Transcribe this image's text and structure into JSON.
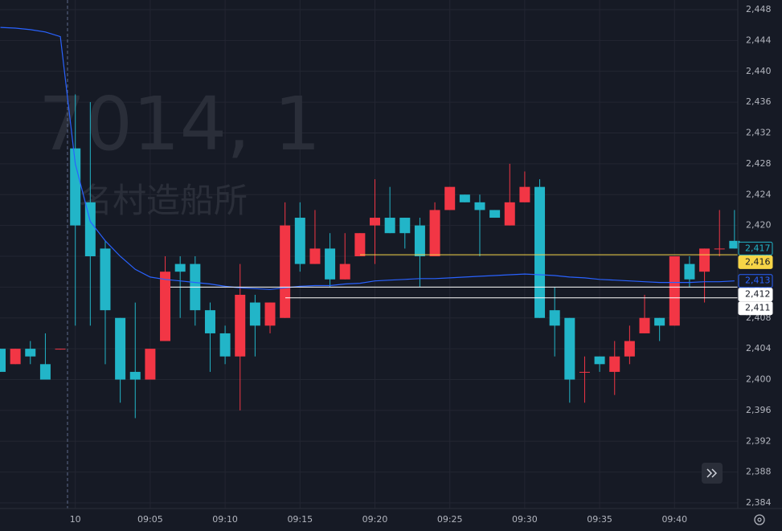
{
  "chart_data": {
    "type": "candlestick",
    "watermark": [
      "7014, 1",
      "名村造船所"
    ],
    "categories": [
      null,
      null,
      null,
      null,
      null,
      "10",
      null,
      null,
      null,
      null,
      "09:05",
      null,
      null,
      null,
      null,
      "09:10",
      null,
      null,
      null,
      null,
      "09:15",
      null,
      null,
      null,
      null,
      "09:20",
      null,
      null,
      null,
      null,
      "09:25",
      null,
      null,
      null,
      null,
      "09:30",
      null,
      null,
      null,
      null,
      "09:35",
      null,
      null,
      null,
      null,
      "09:40",
      null,
      null,
      null,
      null
    ],
    "open": [
      2404,
      2402,
      2404,
      2402,
      2404,
      2430,
      2423,
      2417,
      2408,
      2401,
      2400,
      2405,
      2415,
      2415,
      2409,
      2406,
      2403,
      2410,
      2407,
      2408,
      2421,
      2415,
      2417,
      2413,
      2416,
      2420,
      2421,
      2421,
      2420,
      2416,
      2422,
      2424,
      2423,
      2422,
      2420,
      2423,
      2425,
      2409,
      2408,
      2401,
      2403,
      2401,
      2403,
      2406,
      2408,
      2407,
      2415,
      2414,
      2417,
      2418
    ],
    "high": [
      2404,
      2404,
      2405,
      2406,
      2404,
      2437,
      2436,
      2418,
      2408,
      2410,
      2404,
      2416,
      2416,
      2416,
      2410,
      2407,
      2415,
      2411,
      2410,
      2423,
      2423,
      2422,
      2419,
      2419,
      2419,
      2426,
      2425,
      2421,
      2421,
      2423,
      2425,
      2424,
      2424,
      2422,
      2428,
      2427,
      2426,
      2412,
      2408,
      2403,
      2403,
      2405,
      2407,
      2411,
      2408,
      2416,
      2416,
      2417,
      2422,
      2422
    ],
    "low": [
      2401,
      2402,
      2402,
      2400,
      2404,
      2407,
      2407,
      2402,
      2397,
      2395,
      2400,
      2405,
      2408,
      2407,
      2401,
      2402,
      2396,
      2403,
      2406,
      2408,
      2414,
      2415,
      2412,
      2413,
      2416,
      2415,
      2419,
      2417,
      2412,
      2416,
      2422,
      2423,
      2416,
      2421,
      2420,
      2423,
      2408,
      2403,
      2397,
      2397,
      2401,
      2398,
      2402,
      2406,
      2405,
      2407,
      2412,
      2410,
      2416,
      2417
    ],
    "close": [
      2401,
      2404,
      2403,
      2400,
      2404,
      2420,
      2416,
      2409,
      2400,
      2400,
      2404,
      2414,
      2414,
      2409,
      2406,
      2403,
      2411,
      2407,
      2410,
      2420,
      2415,
      2417,
      2413,
      2415,
      2419,
      2421,
      2419,
      2419,
      2416,
      2422,
      2425,
      2423,
      2422,
      2421,
      2423,
      2425,
      2408,
      2407,
      2400,
      2401,
      2402,
      2403,
      2405,
      2408,
      2407,
      2416,
      2413,
      2417,
      2417,
      2417
    ],
    "up_color": "#f23645",
    "down_color": "#22b5c8",
    "series": [
      {
        "color": "#2962ff",
        "values": [
          2445.7,
          2445.6,
          2445.4,
          2445.1,
          2444.5,
          2428.0,
          2420.5,
          2418.0,
          2416.0,
          2414.3,
          2413.3,
          2413.0,
          2412.8,
          2412.6,
          2412.4,
          2412.1,
          2411.9,
          2411.8,
          2411.7,
          2411.9,
          2412.1,
          2412.2,
          2412.2,
          2412.4,
          2412.5,
          2412.8,
          2412.9,
          2413.0,
          2413.1,
          2413.1,
          2413.2,
          2413.3,
          2413.4,
          2413.5,
          2413.6,
          2413.7,
          2413.6,
          2413.5,
          2413.3,
          2413.2,
          2413.0,
          2412.9,
          2412.8,
          2412.7,
          2412.6,
          2412.6,
          2412.6,
          2412.7,
          2412.7,
          2412.8
        ]
      }
    ],
    "price_labels": [
      {
        "value": 2417,
        "label": "2,417",
        "color": "#22b5c8",
        "line": false
      },
      {
        "value": 2416.2,
        "label": "2,416",
        "color": "#f7d547",
        "line": true
      },
      {
        "value": 2412.8,
        "label": "2,413",
        "color": "#2962ff",
        "line": false
      },
      {
        "value": 2412,
        "label": "2,412",
        "color": "#ffffff",
        "line": true
      },
      {
        "value": 2410.6,
        "label": "2,411",
        "color": "#ffffff",
        "line": true
      }
    ],
    "ylim": [
      2384,
      2448
    ],
    "yticks": [
      {
        "value": 2384,
        "label": "2,384"
      },
      {
        "value": 2388,
        "label": "2,388"
      },
      {
        "value": 2392,
        "label": "2,392"
      },
      {
        "value": 2396,
        "label": "2,396"
      },
      {
        "value": 2400,
        "label": "2,400"
      },
      {
        "value": 2404,
        "label": "2,404"
      },
      {
        "value": 2408,
        "label": "2,408"
      },
      {
        "value": 2412,
        "label": "2,412"
      },
      {
        "value": 2416,
        "label": "2,416"
      },
      {
        "value": 2420,
        "label": "2,420"
      },
      {
        "value": 2424,
        "label": "2,424"
      },
      {
        "value": 2428,
        "label": "2,428"
      },
      {
        "value": 2432,
        "label": "2,432"
      },
      {
        "value": 2436,
        "label": "2,436"
      },
      {
        "value": 2440,
        "label": "2,440"
      },
      {
        "value": 2444,
        "label": "2,444"
      },
      {
        "value": 2448,
        "label": "2,448"
      }
    ],
    "grid": true
  }
}
